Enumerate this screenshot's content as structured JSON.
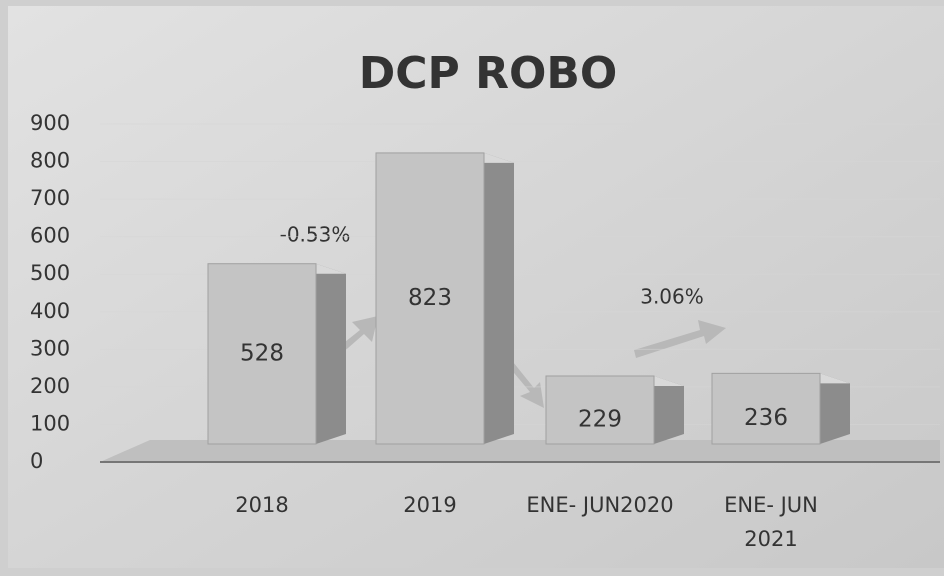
{
  "chart_data": {
    "type": "bar",
    "title": "DCP ROBO",
    "categories": [
      "2018",
      "2019",
      "ENE- JUN2020",
      "ENE- JUN 2021"
    ],
    "values": [
      528,
      823,
      229,
      236
    ],
    "color": "#c4c4c4",
    "ylim": [
      0,
      900
    ],
    "yticks": [
      0,
      100,
      200,
      300,
      400,
      500,
      600,
      700,
      800,
      900
    ],
    "annotations": [
      "-0.53%",
      "3.06%"
    ]
  }
}
